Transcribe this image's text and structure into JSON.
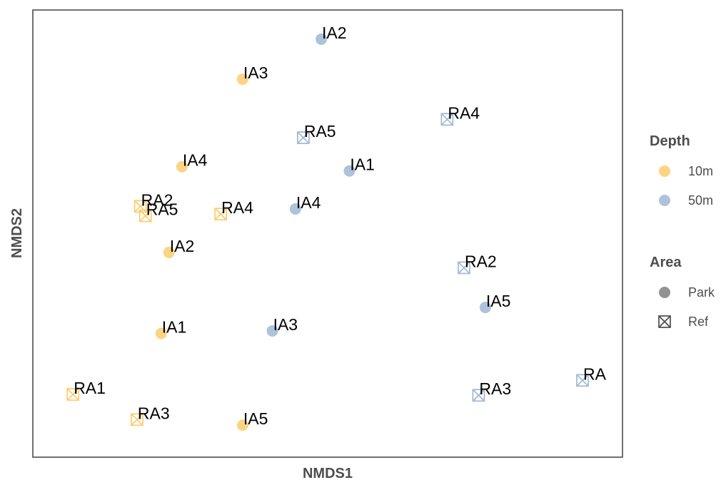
{
  "chart_data": {
    "type": "scatter",
    "xlabel": "NMDS1",
    "ylabel": "NMDS2",
    "xlim": [
      0,
      100
    ],
    "ylim": [
      0,
      100
    ],
    "grid": false,
    "legend_placement": "right",
    "colors": {
      "10m": "#FDCB6E",
      "50m": "#9EB9D4"
    },
    "legends": [
      {
        "title": "Depth",
        "type": "color",
        "entries": [
          {
            "label": "10m",
            "key": "10m"
          },
          {
            "label": "50m",
            "key": "50m"
          }
        ]
      },
      {
        "title": "Area",
        "type": "shape",
        "entries": [
          {
            "label": "Park",
            "shape": "circle"
          },
          {
            "label": "Ref",
            "shape": "boxx"
          }
        ]
      }
    ],
    "points": [
      {
        "label": "IA2",
        "x": 48.8,
        "y": 95.5,
        "depth": "50m",
        "area": "Park"
      },
      {
        "label": "IA3",
        "x": 34.8,
        "y": 86.1,
        "depth": "10m",
        "area": "Park"
      },
      {
        "label": "RA4",
        "x": 71.2,
        "y": 76.7,
        "depth": "50m",
        "area": "Ref"
      },
      {
        "label": "RA5",
        "x": 45.6,
        "y": 72.4,
        "depth": "50m",
        "area": "Ref"
      },
      {
        "label": "IA4",
        "x": 24.0,
        "y": 65.6,
        "depth": "10m",
        "area": "Park"
      },
      {
        "label": "IA1",
        "x": 53.8,
        "y": 64.6,
        "depth": "50m",
        "area": "Park"
      },
      {
        "label": "RA2",
        "x": 16.6,
        "y": 56.3,
        "depth": "10m",
        "area": "Ref"
      },
      {
        "label": "RA5",
        "x": 17.5,
        "y": 54.1,
        "depth": "10m",
        "area": "Ref"
      },
      {
        "label": "RA4",
        "x": 30.9,
        "y": 54.5,
        "depth": "10m",
        "area": "Ref"
      },
      {
        "label": "IA4",
        "x": 44.2,
        "y": 55.7,
        "depth": "50m",
        "area": "Park"
      },
      {
        "label": "IA2",
        "x": 21.7,
        "y": 45.5,
        "depth": "10m",
        "area": "Park"
      },
      {
        "label": "RA2",
        "x": 74.2,
        "y": 41.9,
        "depth": "50m",
        "area": "Ref"
      },
      {
        "label": "IA5",
        "x": 78.0,
        "y": 32.6,
        "depth": "50m",
        "area": "Park"
      },
      {
        "label": "IA1",
        "x": 20.3,
        "y": 26.5,
        "depth": "10m",
        "area": "Park"
      },
      {
        "label": "IA3",
        "x": 40.1,
        "y": 27.1,
        "depth": "50m",
        "area": "Park"
      },
      {
        "label": "RA",
        "x": 95.3,
        "y": 15.5,
        "depth": "50m",
        "area": "Ref"
      },
      {
        "label": "RA1",
        "x": 4.6,
        "y": 12.2,
        "depth": "10m",
        "area": "Ref"
      },
      {
        "label": "RA3",
        "x": 76.8,
        "y": 12.0,
        "depth": "50m",
        "area": "Ref"
      },
      {
        "label": "RA3",
        "x": 16.0,
        "y": 6.3,
        "depth": "10m",
        "area": "Ref"
      },
      {
        "label": "IA5",
        "x": 34.8,
        "y": 5.0,
        "depth": "10m",
        "area": "Park"
      }
    ]
  }
}
